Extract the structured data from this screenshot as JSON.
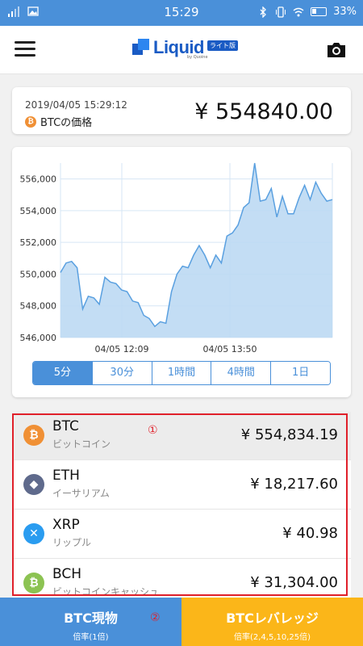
{
  "status_bar": {
    "time": "15:29",
    "battery": "33%"
  },
  "header": {
    "logo_text": "Liquid",
    "logo_badge": "ライト版",
    "logo_sub": "by Quoine"
  },
  "price_card": {
    "timestamp": "2019/04/05 15:29:12",
    "coin_badge": "₿",
    "label": "BTCの価格",
    "price": "¥ 554840.00"
  },
  "chart_data": {
    "type": "area",
    "y_ticks": [
      "556,000",
      "554,000",
      "552,000",
      "550,000",
      "548,000",
      "546,000"
    ],
    "x_ticks": [
      "04/05 12:09",
      "04/05 13:50"
    ],
    "ylim": [
      546000,
      557000
    ],
    "values": [
      550100,
      550700,
      550800,
      550400,
      547800,
      548600,
      548500,
      548100,
      549800,
      549500,
      549400,
      549000,
      548900,
      548300,
      548200,
      547400,
      547200,
      546700,
      547000,
      546900,
      548900,
      550000,
      550500,
      550400,
      551200,
      551800,
      551200,
      550400,
      551200,
      550700,
      552400,
      552600,
      553100,
      554200,
      554500,
      557000,
      554600,
      554700,
      555400,
      553600,
      554900,
      553800,
      553800,
      554800,
      555600,
      554700,
      555800,
      555100,
      554600,
      554700
    ],
    "grid": true
  },
  "tabs": [
    "5分",
    "30分",
    "1時間",
    "4時間",
    "1日"
  ],
  "coins": [
    {
      "symbol": "BTC",
      "name": "ビットコイン",
      "price": "¥ 554,834.19",
      "glyph": "₿",
      "color": "#f09035"
    },
    {
      "symbol": "ETH",
      "name": "イーサリアム",
      "price": "¥ 18,217.60",
      "glyph": "◆",
      "color": "#5f6a8c"
    },
    {
      "symbol": "XRP",
      "name": "リップル",
      "price": "¥ 40.98",
      "glyph": "✕",
      "color": "#2a9cf0"
    },
    {
      "symbol": "BCH",
      "name": "ビットコインキャッシュ",
      "price": "¥ 31,304.00",
      "glyph": "₿",
      "color": "#8cc352"
    }
  ],
  "annotations": {
    "one": "①",
    "two": "②"
  },
  "bottom": {
    "spot_title": "BTC現物",
    "spot_sub": "倍率(1倍)",
    "leverage_title": "BTCレバレッジ",
    "leverage_sub": "倍率(2,4,5,10,25倍)"
  }
}
